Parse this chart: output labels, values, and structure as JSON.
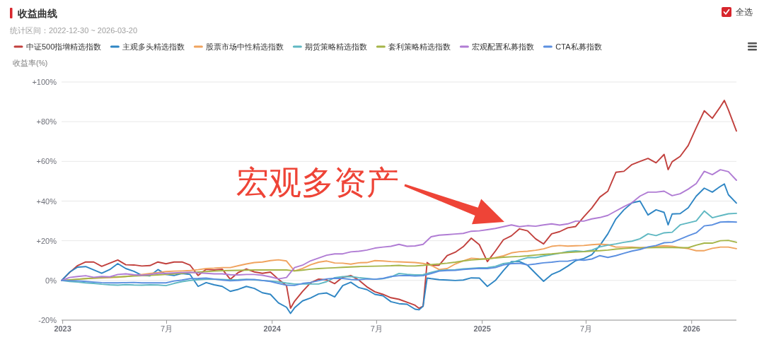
{
  "chart_data": {
    "type": "line",
    "title": "收益曲线",
    "subtitle": "统计区间：2022-12-30 ~ 2026-03-20",
    "ylabel": "收益率(%)",
    "xlim": [
      "2022-12-30",
      "2026-03-20"
    ],
    "ylim": [
      -20,
      100
    ],
    "xticks": [
      {
        "value": "2023-01-01",
        "label": "2023"
      },
      {
        "value": "2023-07-01",
        "label": "7月"
      },
      {
        "value": "2024-01-01",
        "label": "2024"
      },
      {
        "value": "2024-07-01",
        "label": "7月"
      },
      {
        "value": "2025-01-01",
        "label": "2025"
      },
      {
        "value": "2025-07-01",
        "label": "7月"
      },
      {
        "value": "2026-01-01",
        "label": "2026"
      }
    ],
    "yticks": [
      {
        "value": -20,
        "label": "-20%"
      },
      {
        "value": 0,
        "label": "0%"
      },
      {
        "value": 20,
        "label": "+20%"
      },
      {
        "value": 40,
        "label": "+40%"
      },
      {
        "value": 60,
        "label": "+60%"
      },
      {
        "value": 80,
        "label": "+80%"
      },
      {
        "value": 100,
        "label": "+100%"
      }
    ],
    "grid": "y",
    "legend": "top left",
    "line_style": "solid",
    "x": [
      "2022-12-30",
      "2023-01-13",
      "2023-01-27",
      "2023-02-10",
      "2023-02-24",
      "2023-03-10",
      "2023-03-24",
      "2023-04-07",
      "2023-04-21",
      "2023-05-05",
      "2023-05-19",
      "2023-06-02",
      "2023-06-16",
      "2023-06-30",
      "2023-07-14",
      "2023-07-28",
      "2023-08-11",
      "2023-08-25",
      "2023-09-08",
      "2023-09-22",
      "2023-10-06",
      "2023-10-20",
      "2023-11-03",
      "2023-11-17",
      "2023-12-01",
      "2023-12-15",
      "2023-12-29",
      "2024-01-12",
      "2024-01-26",
      "2024-02-09",
      "2024-02-23",
      "2024-03-08",
      "2024-03-22",
      "2024-04-05",
      "2024-04-19",
      "2024-05-03",
      "2024-05-17",
      "2024-05-31",
      "2024-06-14",
      "2024-06-28",
      "2024-07-12",
      "2024-07-26",
      "2024-08-09",
      "2024-08-23",
      "2024-09-06",
      "2024-09-20",
      "2024-10-04",
      "2024-10-18",
      "2024-11-01",
      "2024-11-15",
      "2024-11-29",
      "2024-12-13",
      "2024-12-27",
      "2025-01-10",
      "2025-01-24",
      "2025-02-07",
      "2025-02-21",
      "2025-03-07",
      "2025-03-21",
      "2025-04-04",
      "2025-04-18",
      "2025-05-02",
      "2025-05-16",
      "2025-05-30",
      "2025-06-13",
      "2025-06-27",
      "2025-07-11",
      "2025-07-25",
      "2025-08-08",
      "2025-08-22",
      "2025-09-05",
      "2025-09-19",
      "2025-10-03",
      "2025-10-17",
      "2025-10-31",
      "2025-11-14",
      "2025-11-28",
      "2025-12-12",
      "2025-12-26",
      "2026-01-09",
      "2026-01-23",
      "2026-02-06",
      "2026-02-20",
      "2026-03-06",
      "2026-03-20"
    ],
    "series": [
      {
        "name": "中证500指增精选指数",
        "color": "#c1403d",
        "x": [
          "2022-12-30",
          "2023-01-13",
          "2023-01-27",
          "2023-02-10",
          "2023-02-24",
          "2023-03-10",
          "2023-03-24",
          "2023-04-07",
          "2023-04-21",
          "2023-05-05",
          "2023-05-19",
          "2023-06-02",
          "2023-06-16",
          "2023-06-30",
          "2023-07-14",
          "2023-07-28",
          "2023-08-11",
          "2023-08-25",
          "2023-09-08",
          "2023-09-22",
          "2023-10-06",
          "2023-10-20",
          "2023-11-03",
          "2023-11-17",
          "2023-12-01",
          "2023-12-15",
          "2023-12-29",
          "2024-01-12",
          "2024-01-26",
          "2024-02-02",
          "2024-02-09",
          "2024-02-23",
          "2024-03-08",
          "2024-03-22",
          "2024-04-05",
          "2024-04-19",
          "2024-05-03",
          "2024-05-17",
          "2024-05-31",
          "2024-06-14",
          "2024-06-28",
          "2024-07-12",
          "2024-07-26",
          "2024-08-09",
          "2024-08-23",
          "2024-09-06",
          "2024-09-13",
          "2024-09-20",
          "2024-09-27",
          "2024-10-04",
          "2024-10-18",
          "2024-11-01",
          "2024-11-15",
          "2024-11-29",
          "2024-12-13",
          "2024-12-27",
          "2025-01-10",
          "2025-01-24",
          "2025-02-07",
          "2025-02-21",
          "2025-03-07",
          "2025-03-21",
          "2025-04-04",
          "2025-04-18",
          "2025-05-02",
          "2025-05-16",
          "2025-05-30",
          "2025-06-13",
          "2025-06-27",
          "2025-07-11",
          "2025-07-25",
          "2025-08-08",
          "2025-08-22",
          "2025-09-05",
          "2025-09-19",
          "2025-10-03",
          "2025-10-17",
          "2025-10-31",
          "2025-11-14",
          "2025-11-21",
          "2025-11-28",
          "2025-12-12",
          "2025-12-26",
          "2026-01-09",
          "2026-01-23",
          "2026-02-06",
          "2026-02-20",
          "2026-02-27",
          "2026-03-06",
          "2026-03-20"
        ],
        "values": [
          0,
          4,
          7.5,
          9.3,
          9.3,
          7.1,
          8.7,
          10.3,
          7.9,
          7.8,
          7.3,
          7.5,
          9.3,
          8.4,
          9.3,
          9.3,
          7.7,
          2.5,
          5.6,
          5.3,
          5.7,
          0.6,
          4,
          5.8,
          4.3,
          3.6,
          4.2,
          0.6,
          -2.6,
          -14,
          -10.5,
          -5.5,
          -1.2,
          0.7,
          0.3,
          -1.6,
          1.6,
          2.5,
          0.2,
          -3.2,
          -5.7,
          -7,
          -8.7,
          -9.5,
          -11,
          -12.5,
          -14,
          -13,
          9,
          7.6,
          7.7,
          12.5,
          14.2,
          17,
          21.3,
          18,
          9.5,
          14.8,
          20.5,
          22.5,
          26,
          25,
          21,
          18.4,
          23.5,
          24.6,
          26.5,
          27.2,
          32,
          36.5,
          42,
          45,
          54.5,
          55,
          58.4,
          60,
          61.5,
          59.3,
          63.5,
          55.8,
          59.8,
          62.5,
          68,
          77,
          85.5,
          81.7,
          87.5,
          90.7,
          86,
          75.3
        ]
      },
      {
        "name": "主观多头精选指数",
        "color": "#2f86c4",
        "x": [
          "2022-12-30",
          "2023-01-13",
          "2023-01-27",
          "2023-02-10",
          "2023-02-24",
          "2023-03-10",
          "2023-03-24",
          "2023-04-07",
          "2023-04-21",
          "2023-05-05",
          "2023-05-19",
          "2023-06-02",
          "2023-06-16",
          "2023-06-30",
          "2023-07-14",
          "2023-07-28",
          "2023-08-11",
          "2023-08-25",
          "2023-09-08",
          "2023-09-22",
          "2023-10-06",
          "2023-10-20",
          "2023-11-03",
          "2023-11-17",
          "2023-12-01",
          "2023-12-15",
          "2023-12-29",
          "2024-01-12",
          "2024-01-26",
          "2024-02-02",
          "2024-02-09",
          "2024-02-23",
          "2024-03-08",
          "2024-03-22",
          "2024-04-05",
          "2024-04-19",
          "2024-05-03",
          "2024-05-17",
          "2024-05-31",
          "2024-06-14",
          "2024-06-28",
          "2024-07-12",
          "2024-07-26",
          "2024-08-09",
          "2024-08-23",
          "2024-09-06",
          "2024-09-13",
          "2024-09-20",
          "2024-09-27",
          "2024-10-04",
          "2024-10-18",
          "2024-11-01",
          "2024-11-15",
          "2024-11-29",
          "2024-12-13",
          "2024-12-27",
          "2025-01-10",
          "2025-01-24",
          "2025-02-07",
          "2025-02-21",
          "2025-03-07",
          "2025-03-21",
          "2025-04-04",
          "2025-04-18",
          "2025-05-02",
          "2025-05-16",
          "2025-05-30",
          "2025-06-13",
          "2025-06-27",
          "2025-07-11",
          "2025-07-25",
          "2025-08-08",
          "2025-08-22",
          "2025-09-05",
          "2025-09-19",
          "2025-10-03",
          "2025-10-17",
          "2025-10-31",
          "2025-11-14",
          "2025-11-21",
          "2025-11-28",
          "2025-12-12",
          "2025-12-26",
          "2026-01-09",
          "2026-01-23",
          "2026-02-06",
          "2026-02-20",
          "2026-02-27",
          "2026-03-06",
          "2026-03-20"
        ],
        "values": [
          0,
          4.2,
          6.7,
          7,
          5.3,
          3.6,
          5.5,
          8.5,
          6,
          4.6,
          2.6,
          2.3,
          5.5,
          3,
          2.5,
          3.5,
          3,
          -3,
          -1.1,
          -2.2,
          -3,
          -5.5,
          -4.5,
          -3,
          -4,
          -6.2,
          -7,
          -11.3,
          -13.5,
          -16.6,
          -13.8,
          -10.3,
          -8.8,
          -6.8,
          -6.3,
          -8.3,
          -2.6,
          -0.9,
          -3.6,
          -4.6,
          -7,
          -7.7,
          -10.7,
          -11.7,
          -12,
          -14.5,
          -14.8,
          -13,
          1.2,
          0.9,
          0.4,
          0.2,
          0,
          0.2,
          1.3,
          1.2,
          -3,
          0,
          5,
          9.5,
          9.5,
          7.7,
          3.6,
          -0.4,
          3,
          4.7,
          7.2,
          10,
          11,
          13,
          17.6,
          23.5,
          31,
          35.6,
          39.1,
          40,
          33,
          35.6,
          34.3,
          28,
          33.5,
          33.7,
          36.6,
          42.5,
          46.5,
          44.5,
          47.4,
          48.6,
          43.2,
          39
        ]
      },
      {
        "name": "股票市场中性精选指数",
        "color": "#f0a35e",
        "values": [
          0,
          0.2,
          0.6,
          0.9,
          1.2,
          1.3,
          1.4,
          1.6,
          2,
          2.5,
          3,
          3.5,
          4,
          4.5,
          4.7,
          4.8,
          5,
          5.4,
          6,
          6.2,
          6.5,
          6.5,
          7.4,
          8.3,
          9,
          9.3,
          10,
          10.4,
          9.8,
          4.8,
          6,
          7.9,
          9.2,
          9.8,
          8.8,
          8.7,
          8.2,
          8.9,
          9,
          10,
          9.8,
          9.5,
          9.4,
          9.2,
          9,
          8.6,
          7.6,
          5.5,
          6,
          8.3,
          9.9,
          11.2,
          10.9,
          10.8,
          11.5,
          12.4,
          13.9,
          14.5,
          14.7,
          15.2,
          15.9,
          17.2,
          17.6,
          17.3,
          17.5,
          17.6,
          18,
          18.3,
          18,
          16.8,
          16.8,
          16.8,
          16.5,
          16.7,
          17.1,
          17.5,
          17.2,
          16.6,
          16,
          15,
          15,
          16.2,
          16.8,
          16.8,
          16
        ]
      },
      {
        "name": "期货策略精选指数",
        "color": "#5fb8c2",
        "values": [
          0,
          -0.5,
          -0.8,
          -1.2,
          -1.5,
          -1.9,
          -2.2,
          -2.4,
          -2.1,
          -2.3,
          -2.4,
          -2.2,
          -2.3,
          -2.6,
          -1.5,
          -0.6,
          0,
          0.4,
          0.6,
          0.6,
          0.5,
          0.3,
          0.4,
          0.6,
          0.3,
          0,
          -0.3,
          -0.7,
          -1.3,
          -1.8,
          -1.8,
          -1.8,
          -1.8,
          -0.6,
          1.4,
          1.9,
          2,
          1.4,
          1,
          0.6,
          0.9,
          1.8,
          3.5,
          3.1,
          2.8,
          2.9,
          4.1,
          5,
          5.3,
          5.4,
          5.8,
          6.1,
          6.4,
          6.5,
          7.1,
          8.5,
          9,
          10.3,
          11.5,
          11.5,
          12.3,
          13,
          13.7,
          14.6,
          14.9,
          14.6,
          15.3,
          16.9,
          17.8,
          18.4,
          19.2,
          19.8,
          21,
          23.5,
          22.6,
          24,
          24.3,
          28,
          29,
          30,
          35,
          31.6,
          32.6,
          33.6,
          33.8
        ]
      },
      {
        "name": "套利策略精选指数",
        "color": "#a5b548",
        "values": [
          0,
          0.3,
          0.6,
          0.9,
          1.2,
          1.4,
          1.6,
          1.8,
          2,
          2.2,
          2.4,
          2.6,
          2.8,
          3,
          3.3,
          3.6,
          3.9,
          4.2,
          4.5,
          4.7,
          4.9,
          5,
          5.1,
          5.2,
          5.3,
          5.3,
          5.3,
          5.3,
          5.3,
          4.8,
          5.2,
          5.7,
          6,
          6.2,
          6.4,
          6.6,
          6.8,
          7,
          7.1,
          7.2,
          7.3,
          7.4,
          7.6,
          7.3,
          7.3,
          7.6,
          8,
          8.3,
          8.7,
          9.2,
          9.8,
          10.3,
          10.6,
          11,
          11.3,
          11.7,
          11.9,
          12.1,
          12.4,
          12.8,
          13.1,
          13.4,
          13.8,
          14.1,
          14.3,
          14.5,
          14.8,
          15,
          15.3,
          15.8,
          16.1,
          16.4,
          16.4,
          16.5,
          16.6,
          16.6,
          16.6,
          16.5,
          16.5,
          17.8,
          18.8,
          18.8,
          20,
          20.2,
          19.2
        ]
      },
      {
        "name": "宏观配置私募指数",
        "color": "#b07cd4",
        "values": [
          0,
          1.5,
          2,
          2.4,
          1.6,
          2,
          1.8,
          3,
          3.3,
          2.9,
          2.6,
          3,
          3.6,
          3.6,
          3.8,
          4,
          4.1,
          3.8,
          3.6,
          3.3,
          3.3,
          2.9,
          2.8,
          3,
          3,
          2.6,
          1.8,
          0.8,
          1.5,
          6.5,
          7.7,
          9.9,
          11.3,
          12.7,
          13.4,
          13.4,
          14.4,
          14.7,
          15.3,
          16.3,
          16.8,
          17.2,
          18.2,
          17.2,
          17.4,
          18.2,
          22,
          22.8,
          23.1,
          23.4,
          23.7,
          24.8,
          25,
          25.6,
          26.2,
          27.1,
          28,
          27.1,
          27.6,
          27.3,
          28,
          28.5,
          27.9,
          28.5,
          29.9,
          29.9,
          31,
          31.7,
          32.8,
          35,
          37.2,
          39.2,
          42.5,
          44.5,
          44.5,
          45,
          42.7,
          43.7,
          46,
          48.8,
          55,
          53.3,
          55.8,
          54.8,
          50.5
        ]
      },
      {
        "name": "CTA私募指数",
        "color": "#5b8fe0",
        "values": [
          0,
          -0.1,
          -0.2,
          -0.5,
          -0.8,
          -1.1,
          -1.2,
          -1.2,
          -1.1,
          -1,
          -1.2,
          -1.2,
          -1.2,
          -1.2,
          -0.3,
          0.2,
          0.9,
          1,
          1.2,
          0.7,
          0.2,
          -0.2,
          0,
          0.4,
          0.5,
          0,
          -0.5,
          -1.5,
          -2.4,
          -2.5,
          -1.5,
          -1,
          -0.1,
          0.8,
          1.1,
          1,
          0.5,
          0.3,
          0.8,
          0.6,
          1,
          2,
          2.4,
          2.5,
          2.2,
          2.4,
          3.5,
          4.7,
          5,
          5.1,
          5.5,
          5.8,
          6.1,
          6,
          6.5,
          7.8,
          8.5,
          8.6,
          7.8,
          8.3,
          8.9,
          9.2,
          9.7,
          9.7,
          10.5,
          10.2,
          10.8,
          12.5,
          11.6,
          12.5,
          13.7,
          14.8,
          15.6,
          16.9,
          17.6,
          19,
          19.2,
          20.8,
          22.5,
          24,
          27.5,
          28,
          29.4,
          29.6,
          29.4
        ]
      }
    ],
    "annotations": [
      "全选",
      "宏观多资产"
    ]
  }
}
